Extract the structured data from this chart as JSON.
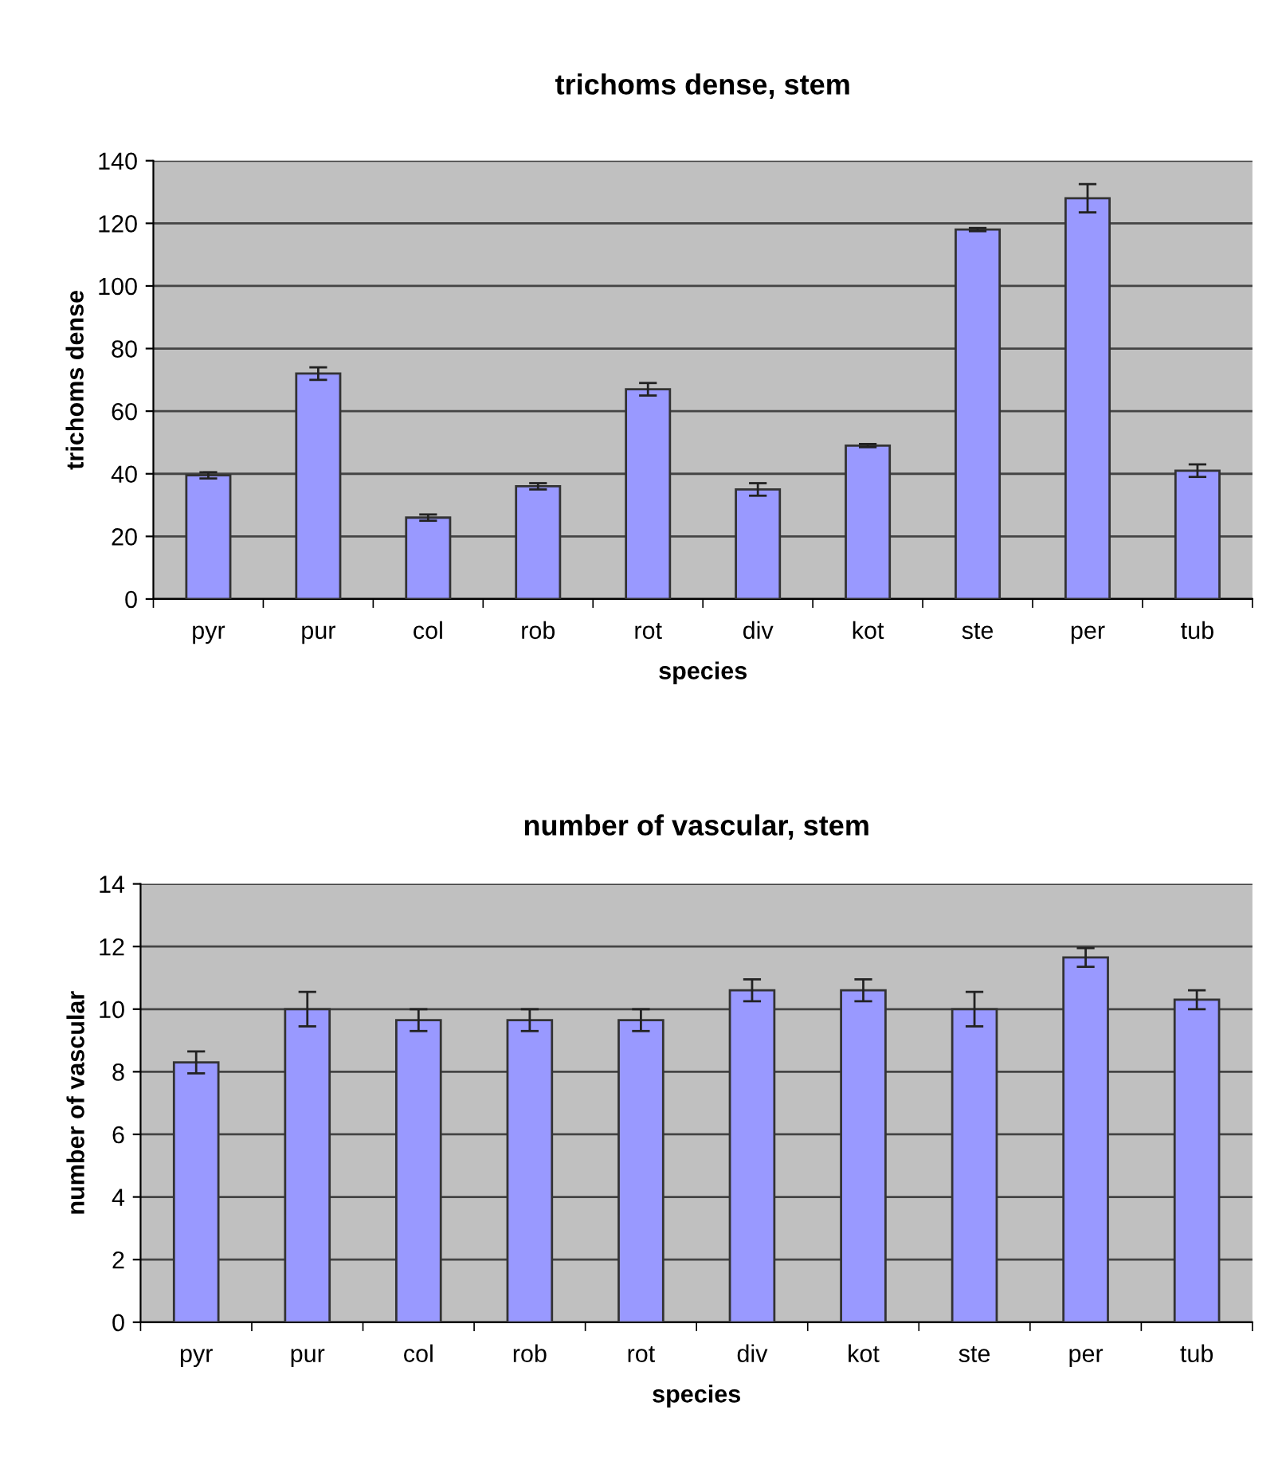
{
  "chart_data": [
    {
      "type": "bar",
      "title": "trichoms dense, stem",
      "xlabel": "species",
      "ylabel": "trichoms dense",
      "categories": [
        "pyr",
        "pur",
        "col",
        "rob",
        "rot",
        "div",
        "kot",
        "ste",
        "per",
        "tub"
      ],
      "values": [
        39.5,
        72,
        26,
        36,
        67,
        35,
        49,
        118,
        128,
        41
      ],
      "errors": [
        1,
        2,
        1,
        1,
        2,
        2,
        0.5,
        0.5,
        4.5,
        2
      ],
      "color": "#9999ff",
      "ylim": [
        0,
        140
      ],
      "yticks": [
        0,
        20,
        40,
        60,
        80,
        100,
        120,
        140
      ],
      "grid": "y"
    },
    {
      "type": "bar",
      "title": "number of vascular, stem",
      "xlabel": "species",
      "ylabel": "number of vascular",
      "categories": [
        "pyr",
        "pur",
        "col",
        "rob",
        "rot",
        "div",
        "kot",
        "ste",
        "per",
        "tub"
      ],
      "values": [
        8.3,
        10,
        9.65,
        9.65,
        9.65,
        10.6,
        10.6,
        10,
        11.65,
        10.3
      ],
      "errors": [
        0.35,
        0.55,
        0.35,
        0.35,
        0.35,
        0.35,
        0.35,
        0.55,
        0.3,
        0.3
      ],
      "color": "#9999ff",
      "ylim": [
        0,
        14
      ],
      "yticks": [
        0,
        2,
        4,
        6,
        8,
        10,
        12,
        14
      ],
      "grid": "y"
    }
  ]
}
